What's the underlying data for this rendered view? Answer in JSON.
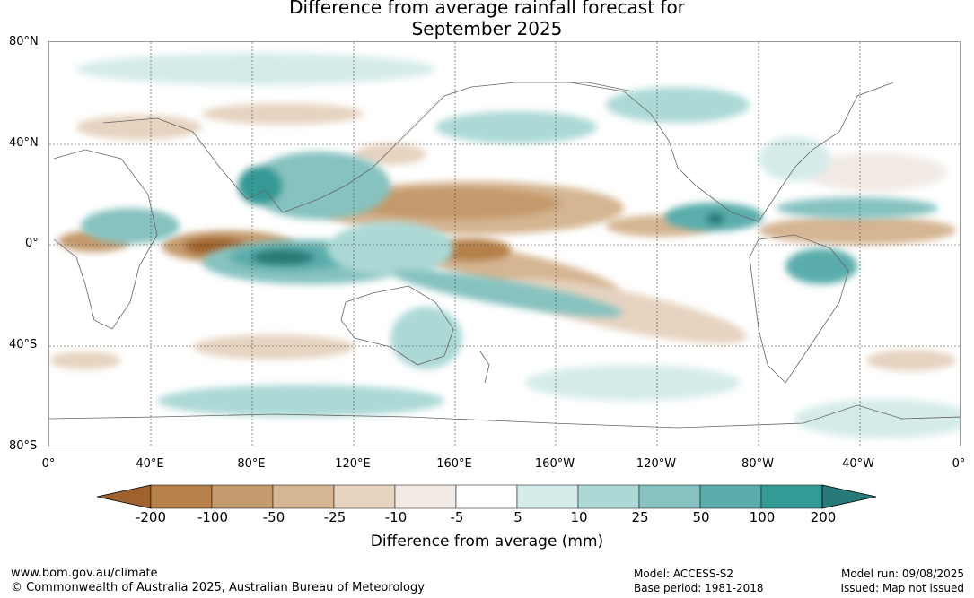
{
  "title": {
    "line1": "Difference from average rainfall forecast for",
    "line2": "September 2025"
  },
  "map": {
    "lat_labels": [
      "80°N",
      "40°N",
      "0°",
      "40°S",
      "80°S"
    ],
    "lon_labels": [
      "0°",
      "40°E",
      "80°E",
      "120°E",
      "160°E",
      "160°W",
      "120°W",
      "80°W",
      "40°W",
      "0°"
    ]
  },
  "colorbar": {
    "ticks": [
      "-200",
      "-100",
      "-50",
      "-25",
      "-10",
      "-5",
      "5",
      "10",
      "25",
      "50",
      "100",
      "200"
    ],
    "colors": [
      "#a0622c",
      "#b5804a",
      "#c49a6c",
      "#d5b592",
      "#e6d3c0",
      "#f2ebe5",
      "#ffffff",
      "#d5ebea",
      "#acd9d6",
      "#86c2c0",
      "#5aadac",
      "#349a96",
      "#277a77"
    ],
    "label": "Difference from average (mm)"
  },
  "footer": {
    "website": "www.bom.gov.au/climate",
    "copyright": "© Commonwealth of Australia 2025, Australian Bureau of Meteorology",
    "model": "Model: ACCESS-S2",
    "base_period": "Base period: 1981-2018",
    "model_run": "Model run: 09/08/2025",
    "issued": "Issued: Map not issued"
  }
}
